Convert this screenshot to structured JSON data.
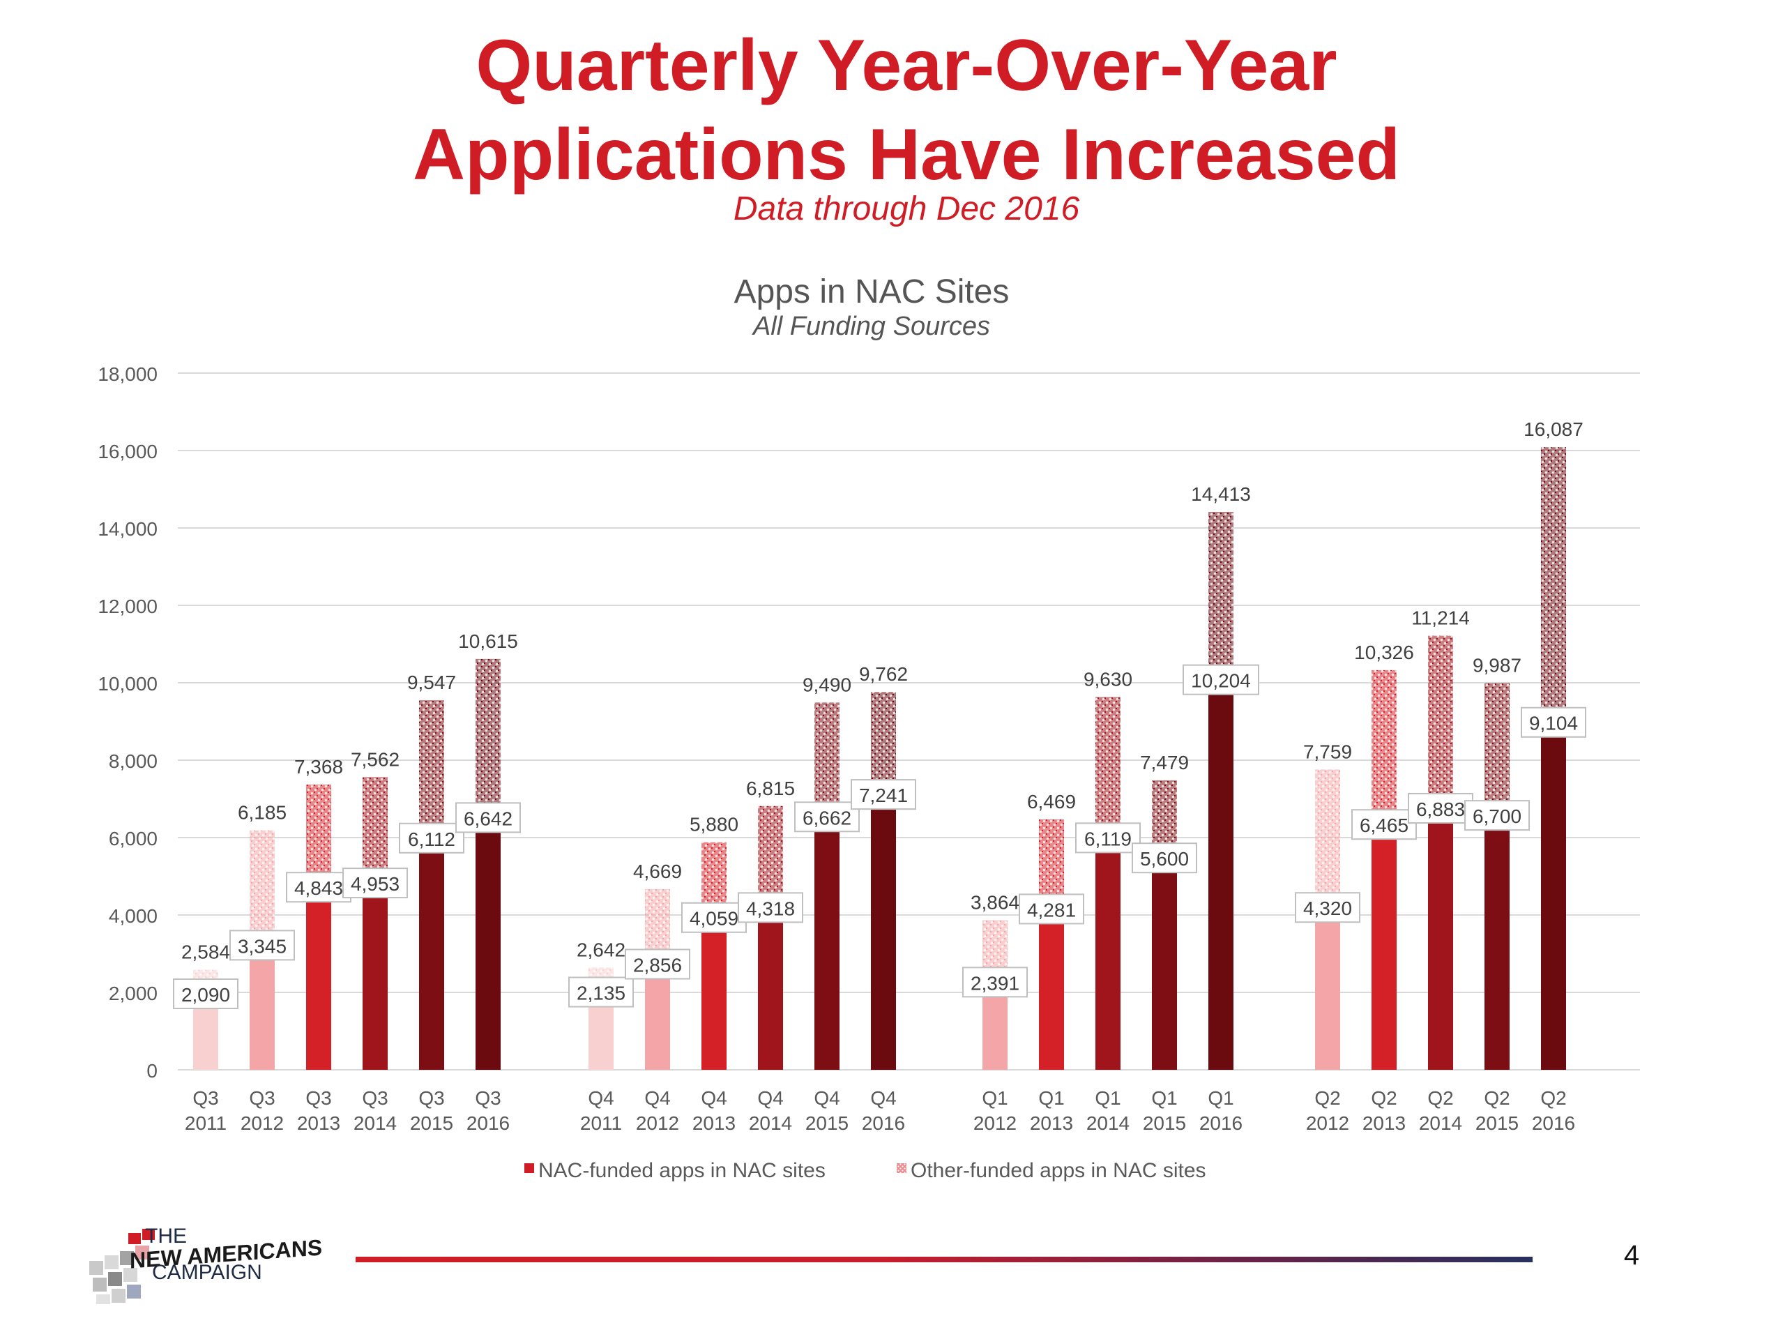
{
  "header": {
    "title_line1": "Quarterly Year-Over-Year",
    "title_line2": "Applications Have Increased",
    "subtitle": "Data through Dec 2016"
  },
  "chart_data": {
    "type": "bar",
    "stacked": true,
    "title": "Apps in NAC Sites",
    "subtitle": "All Funding Sources",
    "ylim": [
      0,
      18000
    ],
    "yticks": [
      0,
      2000,
      4000,
      6000,
      8000,
      10000,
      12000,
      14000,
      16000,
      18000
    ],
    "ytick_labels": [
      "0",
      "2,000",
      "4,000",
      "6,000",
      "8,000",
      "10,000",
      "12,000",
      "14,000",
      "16,000",
      "18,000"
    ],
    "grid": true,
    "legend_position": "bottom",
    "series": [
      {
        "name": "NAC-funded apps in NAC sites",
        "pattern": "solid"
      },
      {
        "name": "Other-funded apps in NAC sites",
        "pattern": "dotted"
      }
    ],
    "groups": [
      {
        "quarter": "Q3",
        "bars": [
          {
            "q": "Q3",
            "year": "2011",
            "nac": 2090,
            "total": 2584,
            "nac_label": "2,090",
            "total_label": "2,584"
          },
          {
            "q": "Q3",
            "year": "2012",
            "nac": 3345,
            "total": 6185,
            "nac_label": "3,345",
            "total_label": "6,185"
          },
          {
            "q": "Q3",
            "year": "2013",
            "nac": 4843,
            "total": 7368,
            "nac_label": "4,843",
            "total_label": "7,368"
          },
          {
            "q": "Q3",
            "year": "2014",
            "nac": 4953,
            "total": 7562,
            "nac_label": "4,953",
            "total_label": "7,562"
          },
          {
            "q": "Q3",
            "year": "2015",
            "nac": 6112,
            "total": 9547,
            "nac_label": "6,112",
            "total_label": "9,547"
          },
          {
            "q": "Q3",
            "year": "2016",
            "nac": 6642,
            "total": 10615,
            "nac_label": "6,642",
            "total_label": "10,615"
          }
        ]
      },
      {
        "quarter": "Q4",
        "bars": [
          {
            "q": "Q4",
            "year": "2011",
            "nac": 2135,
            "total": 2642,
            "nac_label": "2,135",
            "total_label": "2,642"
          },
          {
            "q": "Q4",
            "year": "2012",
            "nac": 2856,
            "total": 4669,
            "nac_label": "2,856",
            "total_label": "4,669"
          },
          {
            "q": "Q4",
            "year": "2013",
            "nac": 4059,
            "total": 5880,
            "nac_label": "4,059",
            "total_label": "5,880"
          },
          {
            "q": "Q4",
            "year": "2014",
            "nac": 4318,
            "total": 6815,
            "nac_label": "4,318",
            "total_label": "6,815"
          },
          {
            "q": "Q4",
            "year": "2015",
            "nac": 6662,
            "total": 9490,
            "nac_label": "6,662",
            "total_label": "9,490"
          },
          {
            "q": "Q4",
            "year": "2016",
            "nac": 7241,
            "total": 9762,
            "nac_label": "7,241",
            "total_label": "9,762"
          }
        ]
      },
      {
        "quarter": "Q1",
        "bars": [
          {
            "q": "Q1",
            "year": "2012",
            "nac": 2391,
            "total": 3864,
            "nac_label": "2,391",
            "total_label": "3,864"
          },
          {
            "q": "Q1",
            "year": "2013",
            "nac": 4281,
            "total": 6469,
            "nac_label": "4,281",
            "total_label": "6,469"
          },
          {
            "q": "Q1",
            "year": "2014",
            "nac": 6119,
            "total": 9630,
            "nac_label": "6,119",
            "total_label": "9,630"
          },
          {
            "q": "Q1",
            "year": "2015",
            "nac": 5600,
            "total": 7479,
            "nac_label": "5,600",
            "total_label": "7,479"
          },
          {
            "q": "Q1",
            "year": "2016",
            "nac": 10204,
            "total": 14413,
            "nac_label": "10,204",
            "total_label": "14,413"
          }
        ]
      },
      {
        "quarter": "Q2",
        "bars": [
          {
            "q": "Q2",
            "year": "2012",
            "nac": 4320,
            "total": 7759,
            "nac_label": "4,320",
            "total_label": "7,759"
          },
          {
            "q": "Q2",
            "year": "2013",
            "nac": 6465,
            "total": 10326,
            "nac_label": "6,465",
            "total_label": "10,326"
          },
          {
            "q": "Q2",
            "year": "2014",
            "nac": 6883,
            "total": 11214,
            "nac_label": "6,883",
            "total_label": "11,214"
          },
          {
            "q": "Q2",
            "year": "2015",
            "nac": 6700,
            "total": 9987,
            "nac_label": "6,700",
            "total_label": "9,987"
          },
          {
            "q": "Q2",
            "year": "2016",
            "nac": 9104,
            "total": 16087,
            "nac_label": "9,104",
            "total_label": "16,087"
          }
        ]
      }
    ],
    "year_colors": {
      "2011": "#f8d0d0",
      "2012": "#f4a5a7",
      "2013": "#d42128",
      "2014": "#a0141b",
      "2015": "#7d0e14",
      "2016": "#6b0b10"
    }
  },
  "footer": {
    "logo_line1": "THE",
    "logo_line2": "NEW AMERICANS",
    "logo_line3": "CAMPAIGN",
    "page_number": "4"
  }
}
